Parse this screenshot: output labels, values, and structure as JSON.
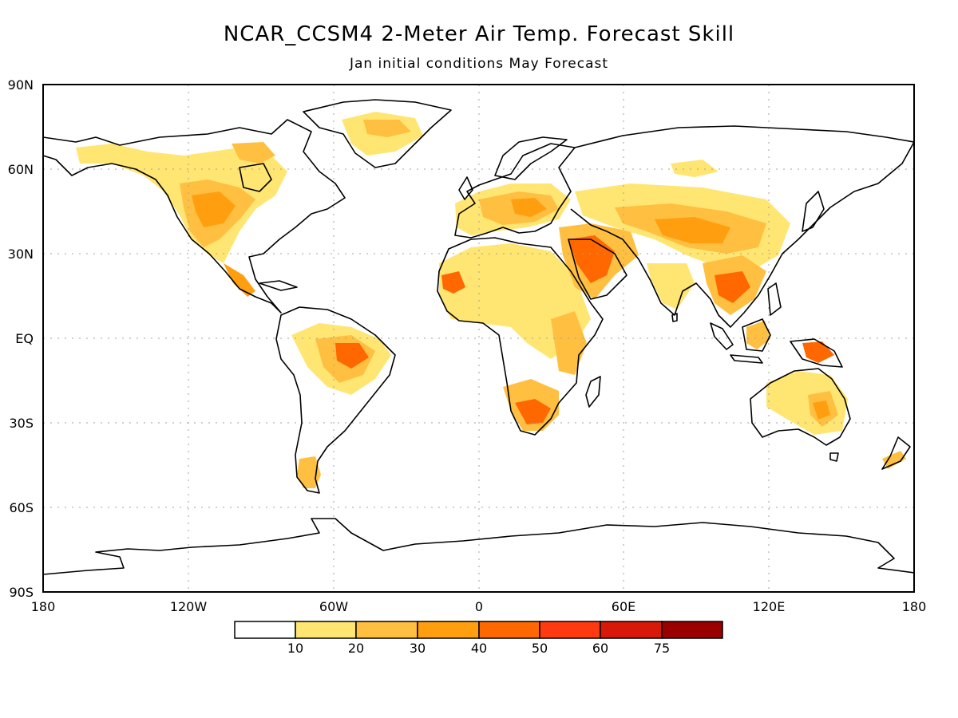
{
  "title": "NCAR_CCSM4 2-Meter Air Temp. Forecast Skill",
  "subtitle": "Jan initial conditions   May Forecast",
  "map": {
    "lat_labels": [
      "90N",
      "60N",
      "30N",
      "EQ",
      "30S",
      "60S",
      "90S"
    ],
    "lat_values": [
      90,
      60,
      30,
      0,
      -30,
      -60,
      -90
    ],
    "lon_labels": [
      "180",
      "120W",
      "60W",
      "0",
      "60E",
      "120E",
      "180"
    ],
    "lon_values": [
      -180,
      -120,
      -60,
      0,
      60,
      120,
      180
    ]
  },
  "colorbar": {
    "labels": [
      "10",
      "20",
      "30",
      "40",
      "50",
      "60",
      "75"
    ],
    "colors": [
      "#ffffff",
      "#ffe673",
      "#ffbf40",
      "#ff9f10",
      "#ff6800",
      "#ff3a10",
      "#d81808",
      "#9a0000"
    ]
  },
  "colors": {
    "c10": "#ffe673",
    "c20": "#ffbf40",
    "c30": "#ff9f10",
    "c40": "#ff6800",
    "c50": "#ff3a10",
    "c60": "#d81808",
    "c75": "#9a0000"
  }
}
